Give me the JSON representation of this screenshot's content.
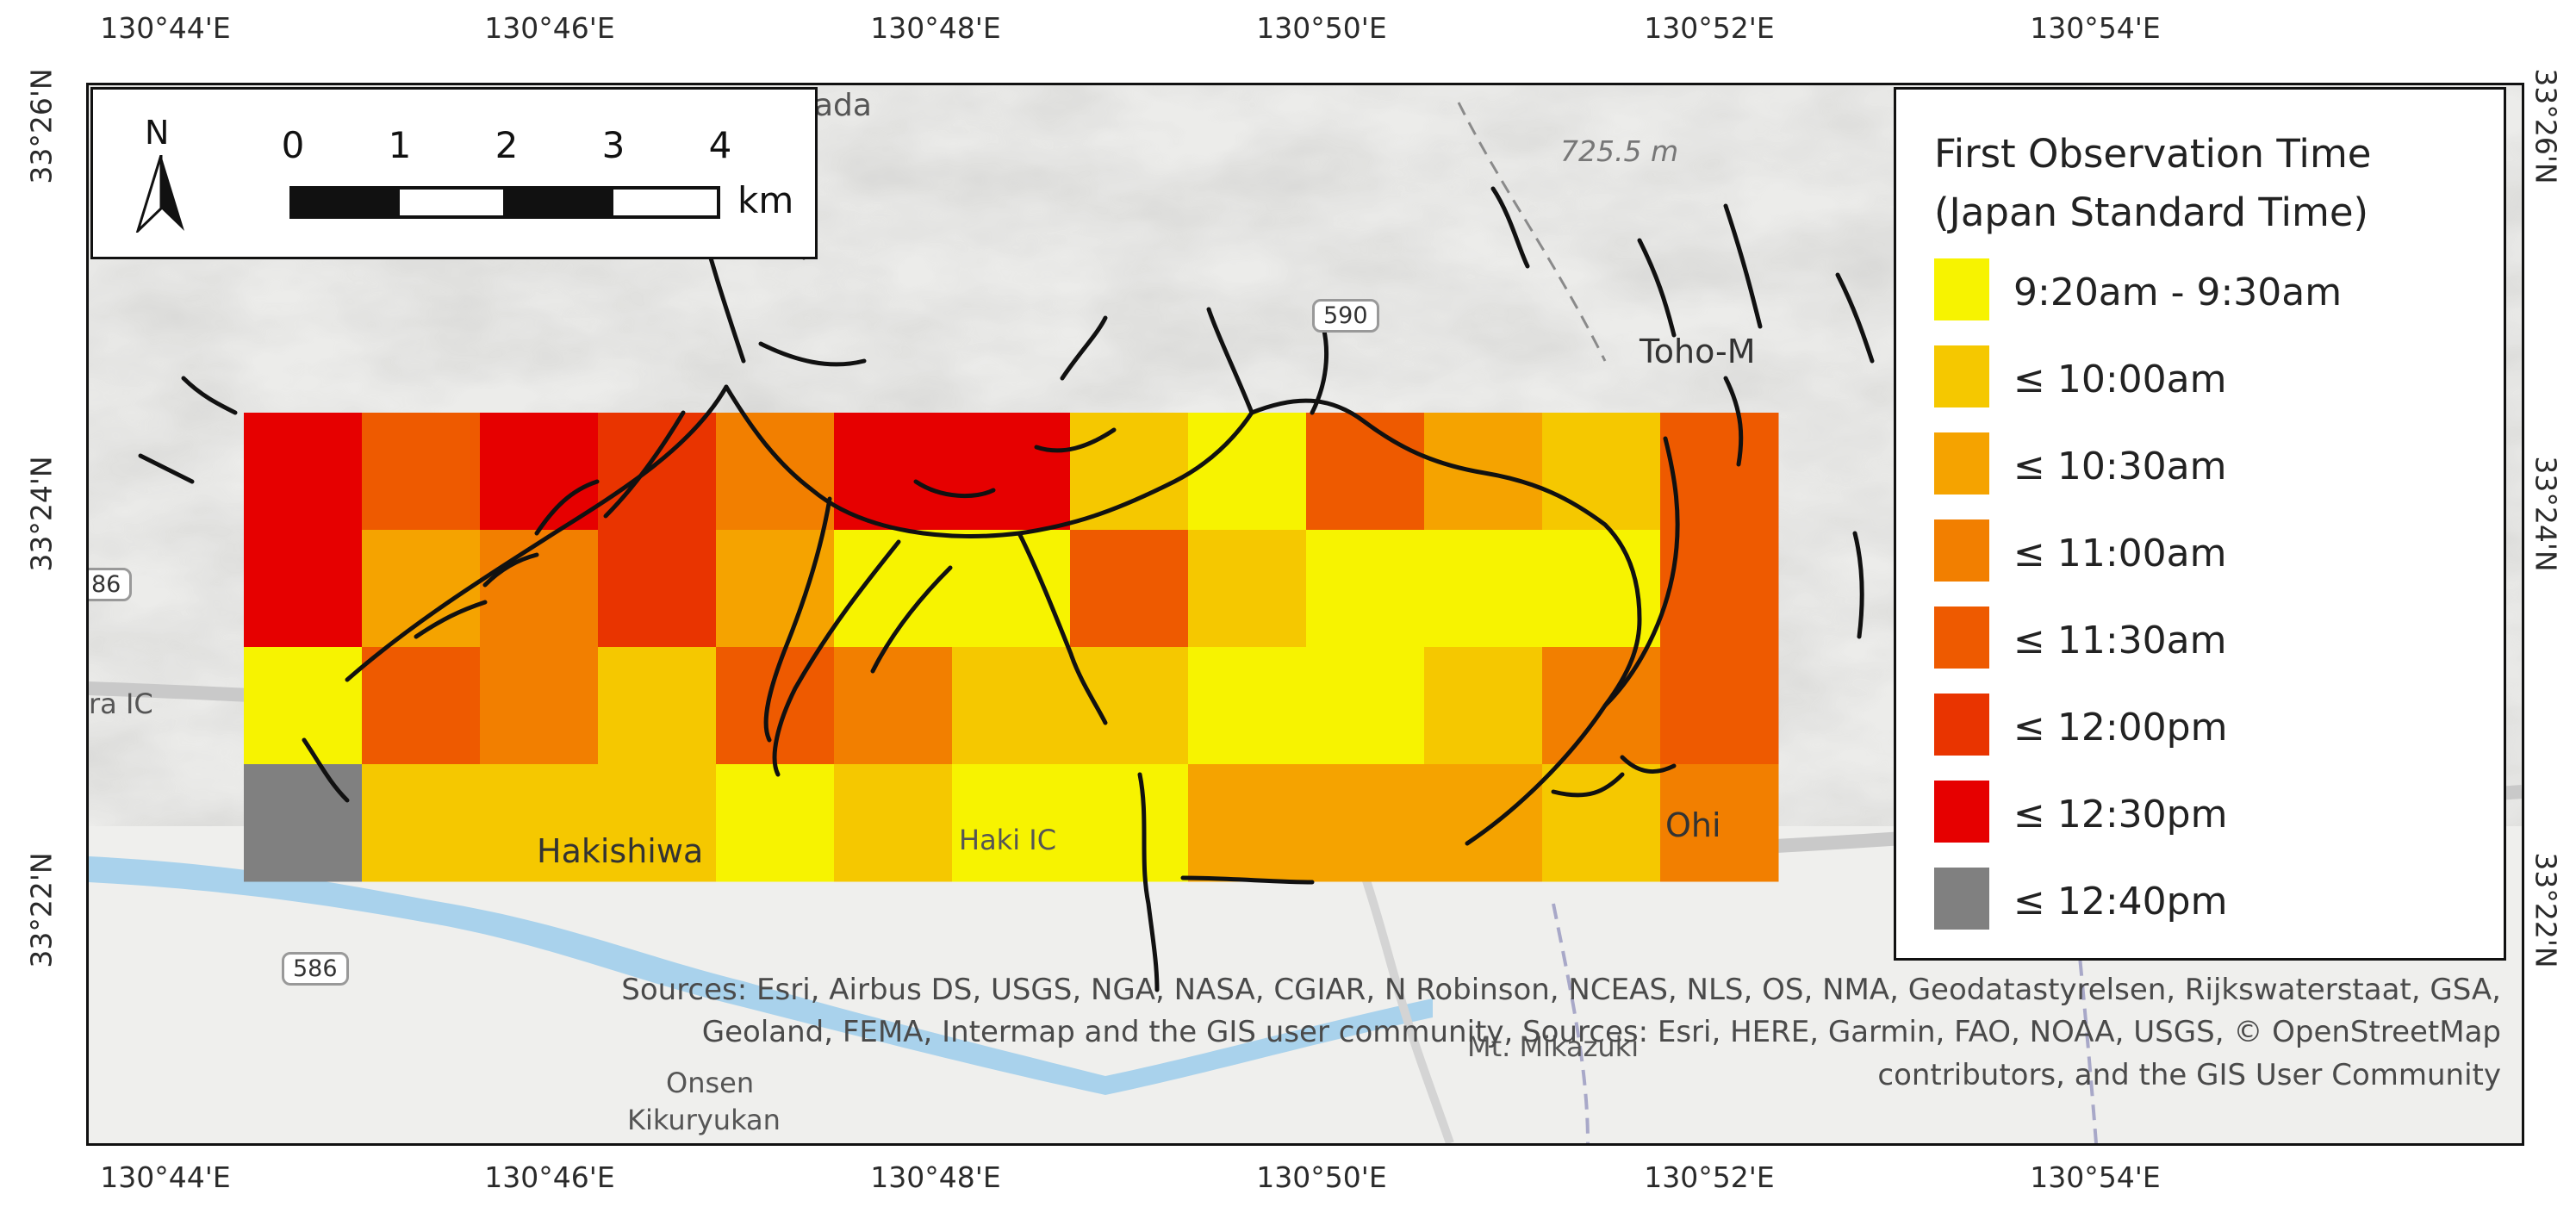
{
  "axes": {
    "lon_ticks": [
      "130°44'E",
      "130°46'E",
      "130°48'E",
      "130°50'E",
      "130°52'E",
      "130°54'E"
    ],
    "lat_ticks": [
      "33°26'N",
      "33°24'N",
      "33°22'N"
    ]
  },
  "scale_bar": {
    "north_label": "N",
    "numbers": [
      "0",
      "1",
      "2",
      "3",
      "4"
    ],
    "unit": "km"
  },
  "legend": {
    "title_line1": "First Observation Time",
    "title_line2": "(Japan Standard Time)",
    "items": [
      {
        "label": "9:20am - 9:30am",
        "color": "#f7f300"
      },
      {
        "label": "≤ 10:00am",
        "color": "#f5c800"
      },
      {
        "label": "≤ 10:30am",
        "color": "#f5a300"
      },
      {
        "label": "≤ 11:00am",
        "color": "#f27f00"
      },
      {
        "label": "≤ 11:30am",
        "color": "#ee5a00"
      },
      {
        "label": "≤ 12:00pm",
        "color": "#e93400"
      },
      {
        "label": "≤ 12:30pm",
        "color": "#e60000"
      },
      {
        "label": "≤ 12:40pm",
        "color": "#808080"
      }
    ]
  },
  "grid": {
    "rows": 4,
    "cols": 13,
    "classes": [
      [
        6,
        4,
        6,
        5,
        3,
        6,
        6,
        1,
        0,
        4,
        2,
        1,
        4
      ],
      [
        6,
        2,
        3,
        5,
        2,
        0,
        0,
        4,
        1,
        0,
        0,
        0,
        4
      ],
      [
        0,
        4,
        3,
        1,
        4,
        3,
        1,
        1,
        0,
        0,
        1,
        3,
        4
      ],
      [
        7,
        1,
        1,
        1,
        0,
        1,
        0,
        0,
        2,
        2,
        2,
        1,
        3
      ]
    ]
  },
  "places": {
    "elevation": "725.5 m",
    "toho": "Toho-M",
    "ohi": "Ohi",
    "hakishiwa": "Hakishiwa",
    "haki_ic": "Haki IC",
    "ra_ic": "ra IC",
    "mt_mikazuki": "Mt. Mikazuki",
    "onsen": "Onsen",
    "kikuryukan": "Kikuryukan",
    "ada": "ada",
    "hwy_590": "590",
    "hwy_586a": "586",
    "hwy_86": "86"
  },
  "credits": {
    "line1": "Sources: Esri, Airbus DS, USGS, NGA, NASA, CGIAR, N Robinson, NCEAS, NLS, OS, NMA, Geodatastyrelsen, Rijkswaterstaat, GSA,",
    "line2": "Geoland, FEMA, Intermap and the GIS user community, Sources: Esri, HERE, Garmin, FAO, NOAA, USGS, © OpenStreetMap",
    "line3": "contributors, and the GIS User Community"
  }
}
